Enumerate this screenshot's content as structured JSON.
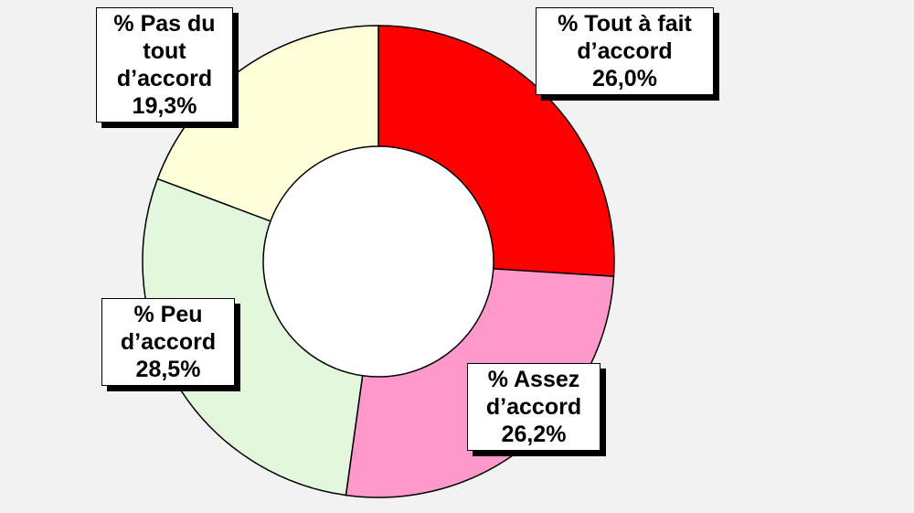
{
  "chart_data": {
    "type": "pie",
    "subtype": "donut",
    "slices": [
      {
        "label_lines": [
          "% Tout à fait",
          "d’accord"
        ],
        "value_text": "26,0%",
        "value": 26.0,
        "color": "#ff0000"
      },
      {
        "label_lines": [
          "% Assez",
          "d’accord"
        ],
        "value_text": "26,2%",
        "value": 26.2,
        "color": "#ff99cc"
      },
      {
        "label_lines": [
          "% Peu",
          "d’accord"
        ],
        "value_text": "28,5%",
        "value": 28.5,
        "color": "#e3f7dc"
      },
      {
        "label_lines": [
          "% Pas du",
          "tout",
          "d’accord"
        ],
        "value_text": "19,3%",
        "value": 19.3,
        "color": "#ffffd9"
      }
    ],
    "start": "top",
    "direction": "clockwise",
    "legend": "none",
    "background": "#f2f2f2"
  }
}
